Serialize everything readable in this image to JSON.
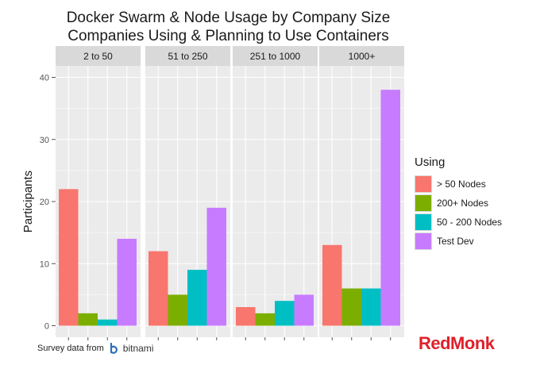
{
  "chart_data": {
    "type": "bar",
    "title": "Docker Swarm & Node Usage by Company Size",
    "subtitle": "Companies Using & Planning to Use Containers",
    "ylabel": "Participants",
    "xlabel": "",
    "ylim": [
      0,
      42
    ],
    "yticks": [
      0,
      10,
      20,
      30,
      40
    ],
    "facets": [
      "2 to 50",
      "51 to 250",
      "251 to 1000",
      "1000+"
    ],
    "legend_title": "Using",
    "legend_position": "right",
    "series": [
      {
        "name": "> 50 Nodes",
        "color": "#f8766d",
        "values": [
          22,
          12,
          3,
          13
        ]
      },
      {
        "name": "200+ Nodes",
        "color": "#7cae00",
        "values": [
          2,
          5,
          2,
          6
        ]
      },
      {
        "name": "50 - 200 Nodes",
        "color": "#00bfc4",
        "values": [
          1,
          9,
          4,
          6
        ]
      },
      {
        "name": "Test Dev",
        "color": "#c77cff",
        "values": [
          14,
          19,
          5,
          38
        ]
      }
    ]
  },
  "footer": {
    "source_text": "Survey data from",
    "source_brand": "bitnami",
    "logo_text": "RedMonk"
  },
  "colors": {
    "panel_bg": "#ebebeb",
    "strip_bg": "#d9d9d9",
    "grid": "#ffffff",
    "brand_red": "#e0202a",
    "bitnami_blue": "#2f6fb4"
  }
}
